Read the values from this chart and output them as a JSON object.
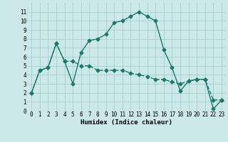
{
  "line1_x": [
    0,
    1,
    2,
    3,
    4,
    5,
    6,
    7,
    8,
    9,
    10,
    11,
    12,
    13,
    14,
    15,
    16,
    17,
    18,
    19,
    20,
    21,
    22,
    23
  ],
  "line1_y": [
    2,
    4.5,
    4.8,
    7.5,
    5.5,
    3.0,
    6.5,
    7.8,
    8.0,
    8.5,
    9.8,
    10.0,
    10.5,
    11.0,
    10.5,
    10.0,
    6.8,
    4.8,
    2.2,
    3.3,
    3.5,
    3.5,
    0.2,
    1.2
  ],
  "line2_x": [
    0,
    1,
    2,
    3,
    4,
    5,
    6,
    7,
    8,
    9,
    10,
    11,
    12,
    13,
    14,
    15,
    16,
    17,
    18,
    19,
    20,
    21,
    22,
    23
  ],
  "line2_y": [
    2,
    4.5,
    4.8,
    7.5,
    5.5,
    5.5,
    5.0,
    5.0,
    4.5,
    4.5,
    4.5,
    4.5,
    4.2,
    4.0,
    3.8,
    3.5,
    3.5,
    3.2,
    3.0,
    3.3,
    3.5,
    3.5,
    1.2,
    1.2
  ],
  "color": "#1a7a6a",
  "bg_color": "#cce8e8",
  "grid_color": "#99cccc",
  "xlabel": "Humidex (Indice chaleur)",
  "ylim": [
    0,
    12
  ],
  "xlim": [
    -0.5,
    23.5
  ],
  "yticks": [
    0,
    1,
    2,
    3,
    4,
    5,
    6,
    7,
    8,
    9,
    10,
    11
  ],
  "xticks": [
    0,
    1,
    2,
    3,
    4,
    5,
    6,
    7,
    8,
    9,
    10,
    11,
    12,
    13,
    14,
    15,
    16,
    17,
    18,
    19,
    20,
    21,
    22,
    23
  ],
  "marker": "D",
  "markersize": 2.5,
  "linewidth": 1.0,
  "tick_fontsize": 5.5,
  "xlabel_fontsize": 6.5
}
